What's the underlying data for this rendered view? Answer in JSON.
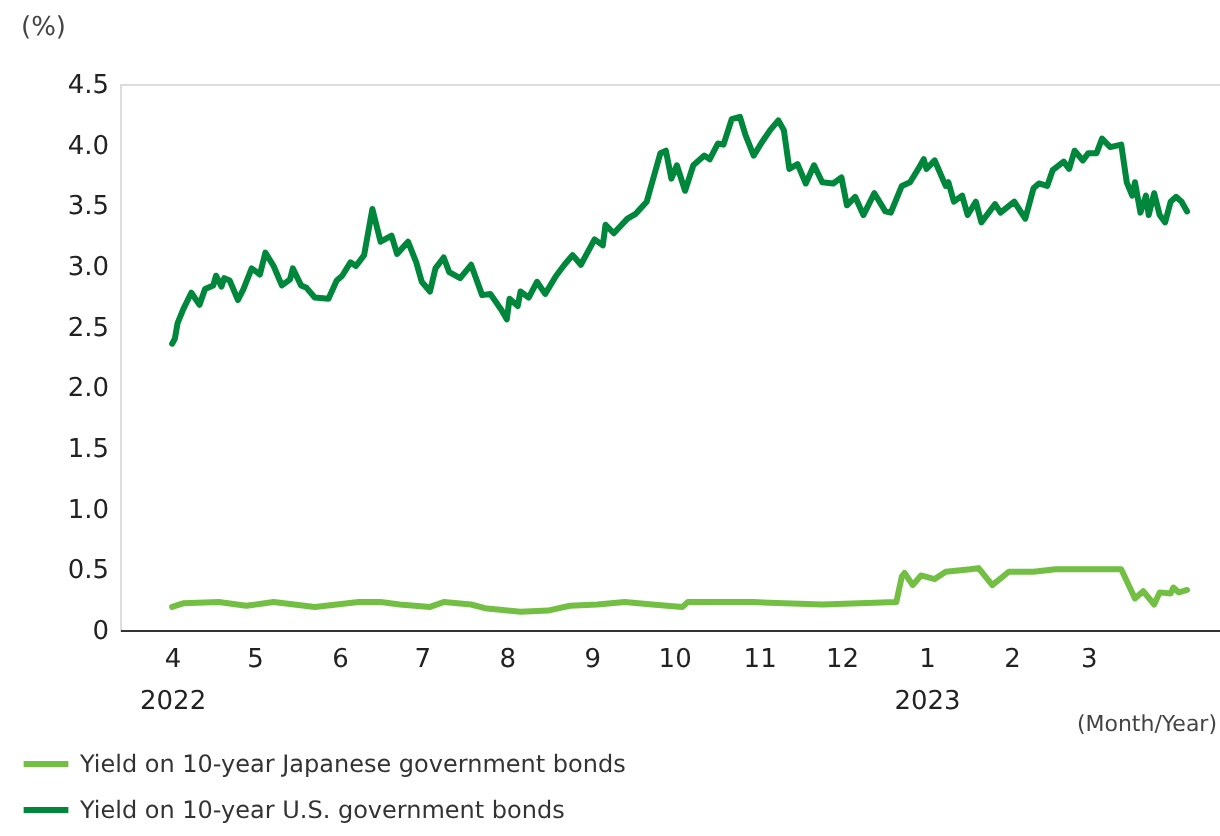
{
  "chart_data": {
    "type": "line",
    "ylabel": "(%)",
    "xlabel": "(Month/Year)",
    "legend": "bottom left",
    "xlim": [
      "2022-03-13",
      "2023-04-18"
    ],
    "xticks": [
      {
        "value": "2022-04-01",
        "label": "4\n2022"
      },
      {
        "value": "2022-05-01",
        "label": "5"
      },
      {
        "value": "2022-06-01",
        "label": "6"
      },
      {
        "value": "2022-07-01",
        "label": "7"
      },
      {
        "value": "2022-08-01",
        "label": "8"
      },
      {
        "value": "2022-09-01",
        "label": "9"
      },
      {
        "value": "2022-10-01",
        "label": "10"
      },
      {
        "value": "2022-11-01",
        "label": "11"
      },
      {
        "value": "2022-12-01",
        "label": "12"
      },
      {
        "value": "2023-01-01",
        "label": "1\n2023"
      },
      {
        "value": "2023-02-01",
        "label": "2"
      },
      {
        "value": "2023-03-01",
        "label": "3"
      }
    ],
    "ylim": [
      0,
      4.5
    ],
    "yticks": [
      0,
      {
        "value": 0.5,
        "label": "0.5"
      },
      {
        "value": 1,
        "label": "1.0"
      },
      {
        "value": 1.5,
        "label": "1.5"
      },
      {
        "value": 2,
        "label": "2.0"
      },
      {
        "value": 2.5,
        "label": "2.5"
      },
      {
        "value": 3,
        "label": "3.0"
      },
      {
        "value": 3.5,
        "label": "3.5"
      },
      {
        "value": 4,
        "label": "4.0"
      },
      {
        "value": 4.5,
        "label": "4.5"
      }
    ],
    "series": [
      {
        "name": "Yield on 10-year Japanese government bonds",
        "color": "#72bf44",
        "x": [
          "2022-04-01",
          "2022-04-05",
          "2022-04-18",
          "2022-04-28",
          "2022-05-08",
          "2022-05-23",
          "2022-06-08",
          "2022-06-16",
          "2022-06-23",
          "2022-07-04",
          "2022-07-09",
          "2022-07-19",
          "2022-07-24",
          "2022-08-06",
          "2022-08-16",
          "2022-08-24",
          "2022-09-03",
          "2022-09-13",
          "2022-09-23",
          "2022-10-04",
          "2022-10-06",
          "2022-10-30",
          "2022-11-24",
          "2022-12-21",
          "2022-12-23",
          "2022-12-24",
          "2022-12-27",
          "2022-12-30",
          "2023-01-04",
          "2023-01-08",
          "2023-01-17",
          "2023-01-20",
          "2023-01-25",
          "2023-01-31",
          "2023-02-09",
          "2023-02-17",
          "2023-03-13",
          "2023-03-18",
          "2023-03-21",
          "2023-03-25",
          "2023-03-27",
          "2023-03-31",
          "2023-04-01",
          "2023-04-03",
          "2023-04-06"
        ],
        "values": [
          0.19,
          0.22,
          0.23,
          0.2,
          0.23,
          0.19,
          0.23,
          0.23,
          0.21,
          0.19,
          0.23,
          0.21,
          0.18,
          0.15,
          0.16,
          0.2,
          0.21,
          0.23,
          0.21,
          0.19,
          0.23,
          0.23,
          0.21,
          0.23,
          0.44,
          0.47,
          0.37,
          0.45,
          0.42,
          0.48,
          0.5,
          0.51,
          0.37,
          0.48,
          0.48,
          0.5,
          0.5,
          0.26,
          0.32,
          0.21,
          0.31,
          0.3,
          0.35,
          0.31,
          0.33
        ]
      },
      {
        "name": "Yield on 10-year U.S. government bonds",
        "color": "#00873c",
        "x": [
          "2022-04-01",
          "2022-04-02",
          "2022-04-03",
          "2022-04-05",
          "2022-04-08",
          "2022-04-11",
          "2022-04-13",
          "2022-04-16",
          "2022-04-17",
          "2022-04-19",
          "2022-04-20",
          "2022-04-22",
          "2022-04-25",
          "2022-04-27",
          "2022-04-30",
          "2022-05-03",
          "2022-05-05",
          "2022-05-08",
          "2022-05-11",
          "2022-05-14",
          "2022-05-15",
          "2022-05-18",
          "2022-05-20",
          "2022-05-23",
          "2022-05-28",
          "2022-05-31",
          "2022-06-02",
          "2022-06-05",
          "2022-06-07",
          "2022-06-10",
          "2022-06-13",
          "2022-06-16",
          "2022-06-20",
          "2022-06-22",
          "2022-06-26",
          "2022-06-29",
          "2022-07-01",
          "2022-07-04",
          "2022-07-06",
          "2022-07-09",
          "2022-07-11",
          "2022-07-15",
          "2022-07-19",
          "2022-07-23",
          "2022-07-26",
          "2022-07-30",
          "2022-08-01",
          "2022-08-02",
          "2022-08-05",
          "2022-08-06",
          "2022-08-09",
          "2022-08-12",
          "2022-08-15",
          "2022-08-19",
          "2022-08-22",
          "2022-08-25",
          "2022-08-28",
          "2022-09-02",
          "2022-09-05",
          "2022-09-06",
          "2022-09-09",
          "2022-09-14",
          "2022-09-17",
          "2022-09-21",
          "2022-09-23",
          "2022-09-26",
          "2022-09-28",
          "2022-09-30",
          "2022-10-02",
          "2022-10-05",
          "2022-10-08",
          "2022-10-12",
          "2022-10-14",
          "2022-10-17",
          "2022-10-19",
          "2022-10-22",
          "2022-10-25",
          "2022-10-27",
          "2022-10-30",
          "2022-11-02",
          "2022-11-05",
          "2022-11-08",
          "2022-11-10",
          "2022-11-12",
          "2022-11-15",
          "2022-11-18",
          "2022-11-21",
          "2022-11-24",
          "2022-11-28",
          "2022-12-01",
          "2022-12-03",
          "2022-12-06",
          "2022-12-09",
          "2022-12-13",
          "2022-12-17",
          "2022-12-19",
          "2022-12-23",
          "2022-12-26",
          "2022-12-29",
          "2022-12-31",
          "2023-01-01",
          "2023-01-04",
          "2023-01-08",
          "2023-01-09",
          "2023-01-11",
          "2023-01-14",
          "2023-01-16",
          "2023-01-19",
          "2023-01-21",
          "2023-01-26",
          "2023-01-28",
          "2023-02-02",
          "2023-02-06",
          "2023-02-09",
          "2023-02-11",
          "2023-02-14",
          "2023-02-16",
          "2023-02-20",
          "2023-02-22",
          "2023-02-24",
          "2023-02-27",
          "2023-03-01",
          "2023-03-04",
          "2023-03-06",
          "2023-03-09",
          "2023-03-13",
          "2023-03-15",
          "2023-03-17",
          "2023-03-18",
          "2023-03-20",
          "2023-03-22",
          "2023-03-23",
          "2023-03-25",
          "2023-03-27",
          "2023-03-29",
          "2023-03-31",
          "2023-04-02",
          "2023-04-04",
          "2023-04-06"
        ],
        "values": [
          2.36,
          2.4,
          2.53,
          2.64,
          2.78,
          2.68,
          2.81,
          2.84,
          2.92,
          2.83,
          2.9,
          2.88,
          2.72,
          2.81,
          2.98,
          2.93,
          3.11,
          3.0,
          2.84,
          2.89,
          2.98,
          2.84,
          2.82,
          2.74,
          2.73,
          2.88,
          2.92,
          3.03,
          3.0,
          3.09,
          3.47,
          3.2,
          3.25,
          3.1,
          3.2,
          3.03,
          2.87,
          2.79,
          2.98,
          3.07,
          2.95,
          2.9,
          3.01,
          2.76,
          2.77,
          2.64,
          2.56,
          2.73,
          2.67,
          2.79,
          2.74,
          2.87,
          2.77,
          2.92,
          3.01,
          3.09,
          3.01,
          3.22,
          3.17,
          3.34,
          3.27,
          3.39,
          3.43,
          3.53,
          3.69,
          3.93,
          3.95,
          3.72,
          3.83,
          3.62,
          3.83,
          3.91,
          3.88,
          4.01,
          4.0,
          4.21,
          4.23,
          4.08,
          3.91,
          4.02,
          4.12,
          4.2,
          4.12,
          3.8,
          3.84,
          3.68,
          3.83,
          3.69,
          3.68,
          3.73,
          3.5,
          3.57,
          3.42,
          3.6,
          3.45,
          3.44,
          3.66,
          3.69,
          3.8,
          3.88,
          3.8,
          3.87,
          3.66,
          3.69,
          3.53,
          3.58,
          3.42,
          3.53,
          3.36,
          3.51,
          3.44,
          3.53,
          3.39,
          3.64,
          3.68,
          3.66,
          3.79,
          3.86,
          3.8,
          3.95,
          3.87,
          3.93,
          3.93,
          4.05,
          3.98,
          4.0,
          3.69,
          3.58,
          3.69,
          3.44,
          3.58,
          3.42,
          3.6,
          3.42,
          3.36,
          3.53,
          3.57,
          3.53,
          3.45
        ]
      }
    ]
  }
}
